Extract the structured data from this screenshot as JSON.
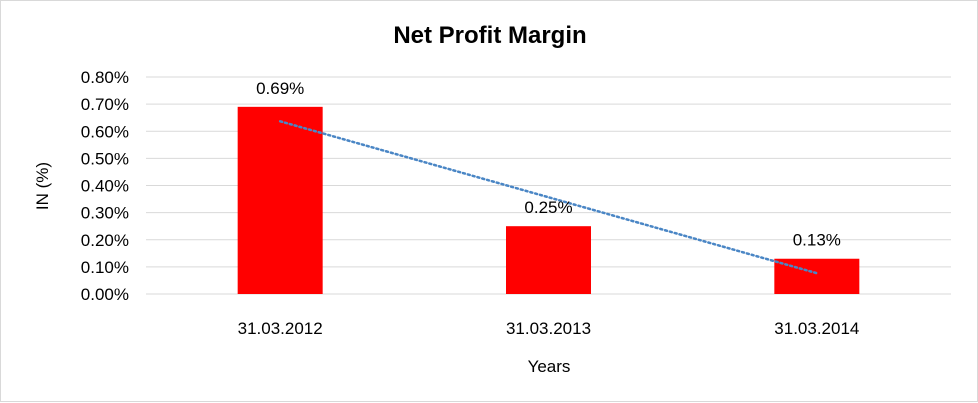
{
  "chart_data": {
    "type": "bar",
    "title": "Net Profit Margin",
    "xlabel": "Years",
    "ylabel": "IN (%)",
    "categories": [
      "31.03.2012",
      "31.03.2013",
      "31.03.2014"
    ],
    "values": [
      0.69,
      0.25,
      0.13
    ],
    "data_labels": [
      "0.69%",
      "0.25%",
      "0.13%"
    ],
    "yticks": [
      0,
      0.1,
      0.2,
      0.3,
      0.4,
      0.5,
      0.6,
      0.7,
      0.8
    ],
    "ytick_labels": [
      "0.00%",
      "0.10%",
      "0.20%",
      "0.30%",
      "0.40%",
      "0.50%",
      "0.60%",
      "0.70%",
      "0.80%"
    ],
    "ylim": [
      0,
      0.8
    ],
    "grid": true,
    "legend": "none",
    "trendline": {
      "type": "linear",
      "style": "dotted",
      "color": "#4a86c5"
    },
    "colors": {
      "bar": "#ff0000",
      "grid": "#d9d9d9",
      "background": "#ffffff"
    }
  }
}
